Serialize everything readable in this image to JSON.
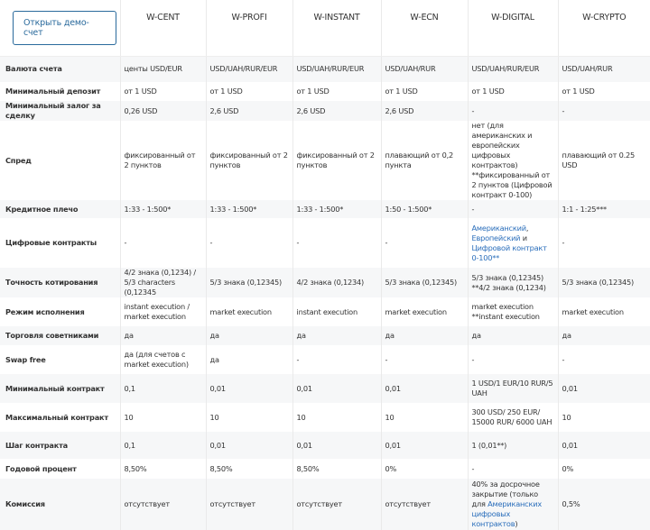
{
  "header": {
    "demo_button": "Открыть демо-счет",
    "columns": [
      "W-CENT",
      "W-PROFI",
      "W-INSTANT",
      "W-ECN",
      "W-DIGITAL",
      "W-CRYPTO"
    ]
  },
  "colors": {
    "link": "#2a6ebb",
    "button_border": "#2a6a9c"
  },
  "rows": [
    {
      "label": "Валюта счета",
      "cells": [
        "центы USD/EUR",
        "USD/UAH/RUR/EUR",
        "USD/UAH/RUR/EUR",
        "USD/UAH/RUR",
        "USD/UAH/RUR/EUR",
        "USD/UAH/RUR"
      ]
    },
    {
      "label": "Минимальный депозит",
      "cells": [
        "от 1 USD",
        "от 1 USD",
        "от 1 USD",
        "от 1 USD",
        "от 1 USD",
        "от 1 USD"
      ]
    },
    {
      "label": "Минимальный залог за сделку",
      "cells": [
        "0,26 USD",
        "2,6 USD",
        "2,6 USD",
        "2,6 USD",
        "-",
        "-"
      ]
    },
    {
      "label": "Спред",
      "cells": [
        "фиксированный от 2 пунктов",
        "фиксированный от 2 пунктов",
        "фиксированный от 2 пунктов",
        "плавающий от 0,2 пункта",
        "нет (для американских и европейских цифровых контрактов) **фиксированный от 2 пунктов (Цифровой контракт 0-100)",
        "плавающий от 0.25 USD"
      ]
    },
    {
      "label": "Кредитное плечо",
      "cells": [
        "1:33 - 1:500*",
        "1:33 - 1:500*",
        "1:33 - 1:500*",
        "1:50 - 1:500*",
        "-",
        "1:1 - 1:25***"
      ]
    },
    {
      "label": "Цифровые контракты",
      "cells": [
        "-",
        "-",
        "-",
        "-",
        "",
        "-"
      ]
    },
    {
      "label": "Точность котирования",
      "cells": [
        "4/2 знака (0,1234) / 5/3 characters (0,12345",
        "5/3 знака (0,12345)",
        "4/2 знака (0,1234)",
        "5/3 знака (0,12345)",
        "5/3 знака (0,12345) **4/2 знака (0,1234)",
        "5/3 знака (0,12345)"
      ]
    },
    {
      "label": "Режим исполнения",
      "cells": [
        "instant execution / market execution",
        "market execution",
        "instant execution",
        "market execution",
        "market execution **instant execution",
        "market execution"
      ]
    },
    {
      "label": "Торговля советниками",
      "cells": [
        "да",
        "да",
        "да",
        "да",
        "да",
        "да"
      ]
    },
    {
      "label": "Swap free",
      "cells": [
        "да (для счетов с market execution)",
        "да",
        "-",
        "-",
        "-",
        "-"
      ]
    },
    {
      "label": "Минимальный контракт",
      "cells": [
        "0,1",
        "0,01",
        "0,01",
        "0,01",
        "1 USD/1 EUR/10 RUR/5 UAH",
        "0,01"
      ]
    },
    {
      "label": "Максимальный контракт",
      "cells": [
        "10",
        "10",
        "10",
        "10",
        "300 USD/ 250 EUR/ 15000 RUR/ 6000 UAH",
        "10"
      ]
    },
    {
      "label": "Шаг контракта",
      "cells": [
        "0,1",
        "0,01",
        "0,01",
        "0,01",
        "1 (0,01**)",
        "0,01"
      ]
    },
    {
      "label": "Годовой процент",
      "cells": [
        "8,50%",
        "8,50%",
        "8,50%",
        "0%",
        "-",
        "0%"
      ]
    },
    {
      "label": "Комиссия",
      "cells": [
        "отсутствует",
        "отсутствует",
        "отсутствует",
        "отсутствует",
        "",
        "0,5%"
      ]
    }
  ],
  "digital_contracts": {
    "american": "Американский",
    "sep1": ",",
    "european": "Европейский",
    "and": " и ",
    "digital": "Цифровой контракт 0-100**"
  },
  "commission_digital": {
    "text": "40% за досрочное закрытие (только для ",
    "link": "Американских цифровых контрактов",
    "end": ")"
  }
}
